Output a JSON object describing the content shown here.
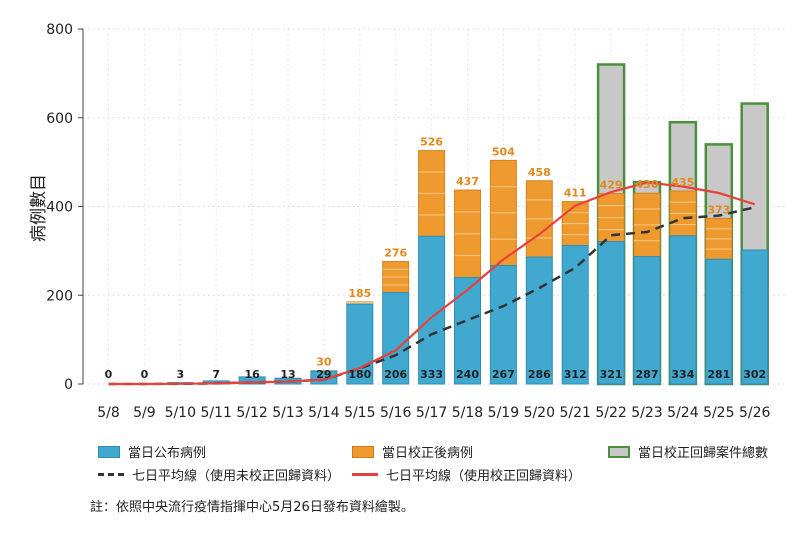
{
  "chart_data": {
    "type": "bar",
    "ylabel": "病例數目",
    "ylim": [
      0,
      800
    ],
    "yticks": [
      0,
      200,
      400,
      600,
      800
    ],
    "categories": [
      "5/8",
      "5/9",
      "5/10",
      "5/11",
      "5/12",
      "5/13",
      "5/14",
      "5/15",
      "5/16",
      "5/17",
      "5/18",
      "5/19",
      "5/20",
      "5/21",
      "5/22",
      "5/23",
      "5/24",
      "5/25",
      "5/26"
    ],
    "series": [
      {
        "name": "當日公布病例",
        "color": "#41a9d0",
        "values": [
          0,
          0,
          3,
          7,
          16,
          13,
          29,
          180,
          206,
          333,
          240,
          267,
          286,
          312,
          321,
          287,
          334,
          281,
          302
        ]
      },
      {
        "name": "當日校正後病例",
        "color": "#ef9a2e",
        "values": [
          0,
          0,
          3,
          7,
          16,
          13,
          30,
          185,
          276,
          526,
          437,
          504,
          458,
          411,
          429,
          430,
          435,
          373,
          null
        ]
      },
      {
        "name": "當日校正回歸案件總數",
        "color": "#c8c8c8",
        "edge": "#4a8f3c",
        "values": [
          null,
          null,
          null,
          null,
          null,
          null,
          null,
          null,
          null,
          null,
          null,
          null,
          null,
          null,
          720,
          455,
          590,
          540,
          632
        ]
      },
      {
        "name": "七日平均線（使用未校正回歸資料）",
        "color": "#333333",
        "values": [
          0,
          0,
          0.4,
          1.4,
          3.7,
          5.6,
          9.7,
          35.1,
          64.9,
          112.0,
          143.9,
          175.6,
          216.4,
          261.6,
          335.3,
          342.6,
          373.7,
          379.4,
          398.3
        ]
      },
      {
        "name": "七日平均線（使用校正回歸資料）",
        "color": "#e8413c",
        "values": [
          0,
          0,
          0.4,
          1.4,
          3.7,
          5.6,
          9.9,
          36.1,
          75.7,
          150.3,
          212.0,
          280.9,
          337.4,
          401.9,
          432.4,
          454.0,
          445.1,
          430.5,
          405.0
        ]
      }
    ],
    "bar_labels_bottom": [
      "0",
      "0",
      "3",
      "7",
      "16",
      "13",
      "29",
      "180",
      "206",
      "333",
      "240",
      "267",
      "286",
      "312",
      "321",
      "287",
      "334",
      "281",
      "302"
    ],
    "bar_labels_top": [
      "",
      "",
      "",
      "",
      "",
      "",
      "30",
      "185",
      "276",
      "526",
      "437",
      "504",
      "458",
      "411",
      "429",
      "430",
      "435",
      "373",
      ""
    ],
    "grid": true
  },
  "legend": {
    "item1": "當日公布病例",
    "item2": "當日校正後病例",
    "item3": "當日校正回歸案件總數",
    "item4": "七日平均線（使用未校正回歸資料）",
    "item5": "七日平均線（使用校正回歸資料）"
  },
  "note": "註：依照中央流行疫情指揮中心5月26日發布資料繪製。"
}
